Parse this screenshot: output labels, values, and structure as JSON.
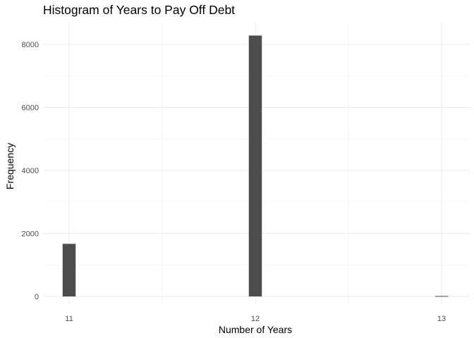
{
  "chart_data": {
    "type": "bar",
    "title": "Histogram of Years to Pay Off Debt",
    "xlabel": "Number of Years",
    "ylabel": "Frequency",
    "x_ticks": [
      "11",
      "12",
      "13"
    ],
    "y_ticks": [
      "0",
      "2000",
      "4000",
      "6000",
      "8000"
    ],
    "xlim": [
      10.9,
      13.05
    ],
    "ylim": [
      0,
      8700
    ],
    "bin_width": 0.07,
    "bins": [
      {
        "x": 11,
        "value": 1670
      },
      {
        "x": 12,
        "value": 8280
      },
      {
        "x": 13,
        "value": 15
      }
    ],
    "grid": true,
    "bar_color": "#4d4d4d",
    "grid_major_color": "#ebebeb",
    "grid_minor_color": "#f3f3f3"
  }
}
